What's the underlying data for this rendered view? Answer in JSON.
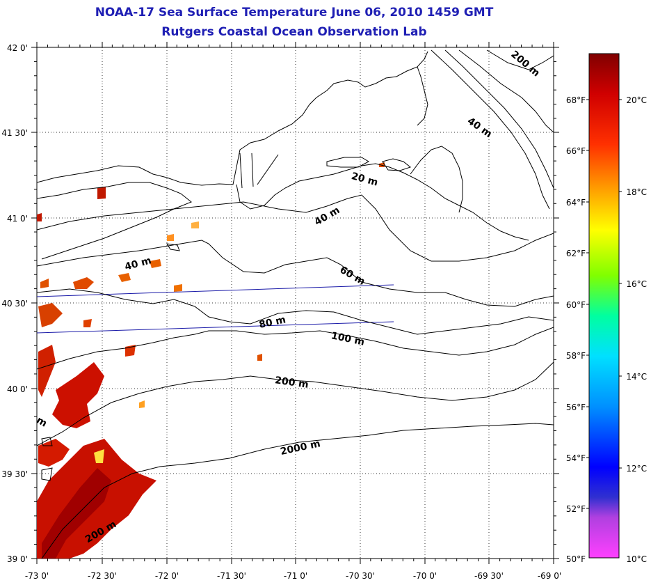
{
  "header": {
    "title": "NOAA-17 Sea Surface Temperature June 06, 2010 1459 GMT",
    "subtitle": "Rutgers Coastal Ocean Observation Lab"
  },
  "map": {
    "lat_labels": [
      "42 0'",
      "41 30'",
      "41 0'",
      "40 30'",
      "40 0'",
      "39 30'",
      "39 0'"
    ],
    "lon_labels": [
      "-73 0'",
      "-72 30'",
      "-72 0'",
      "-71 30'",
      "-71 0'",
      "-70 30'",
      "-70 0'",
      "-69 30'",
      "-69 0'"
    ],
    "contour_labels": [
      "200 m",
      "40 m",
      "20 m",
      "40 m",
      "40 m",
      "60 m",
      "80 m",
      "100 m",
      "200 m",
      "2000 m",
      "200 m",
      "m"
    ],
    "land_color": "#ffffff",
    "line_color": "#000000",
    "track_color": "#1a1aa8"
  },
  "colorbar": {
    "fahrenheit_labels": [
      "68°F",
      "66°F",
      "64°F",
      "62°F",
      "60°F",
      "58°F",
      "56°F",
      "54°F",
      "52°F",
      "50°F"
    ],
    "celsius_labels": [
      "20°C",
      "18°C",
      "16°C",
      "14°C",
      "12°C",
      "10°C"
    ],
    "min_c": 10,
    "max_c": 21,
    "colors": [
      "#ff40ff",
      "#b040e0",
      "#2020e0",
      "#0080ff",
      "#00e0ff",
      "#00ff80",
      "#80ff00",
      "#ffff00",
      "#ffa000",
      "#ff3000",
      "#c00000",
      "#800000"
    ]
  }
}
